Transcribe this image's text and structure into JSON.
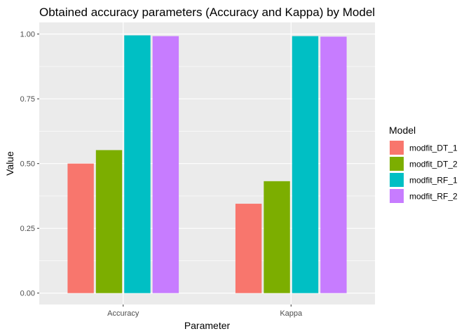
{
  "chart_data": {
    "type": "bar",
    "title": "Obtained accuracy parameters (Accuracy and Kappa) by Model",
    "xlabel": "Parameter",
    "ylabel": "Value",
    "categories": [
      "Accuracy",
      "Kappa"
    ],
    "ylim": [
      -0.044,
      1.045
    ],
    "yticks": [
      0,
      0.25,
      0.5,
      0.75,
      1.0
    ],
    "ytick_labels": [
      "0.00",
      "0.25",
      "0.50",
      "0.75",
      "1.00"
    ],
    "grid": true,
    "legend": {
      "title": "Model",
      "placement": "right"
    },
    "series": [
      {
        "name": "modfit_DT_1",
        "color": "#F8766D",
        "values": [
          0.5,
          0.345
        ]
      },
      {
        "name": "modfit_DT_2",
        "color": "#7CAE00",
        "values": [
          0.552,
          0.432
        ]
      },
      {
        "name": "modfit_RF_1",
        "color": "#00BFC4",
        "values": [
          0.995,
          0.992
        ]
      },
      {
        "name": "modfit_RF_2",
        "color": "#C77CFF",
        "values": [
          0.992,
          0.99
        ]
      }
    ]
  }
}
